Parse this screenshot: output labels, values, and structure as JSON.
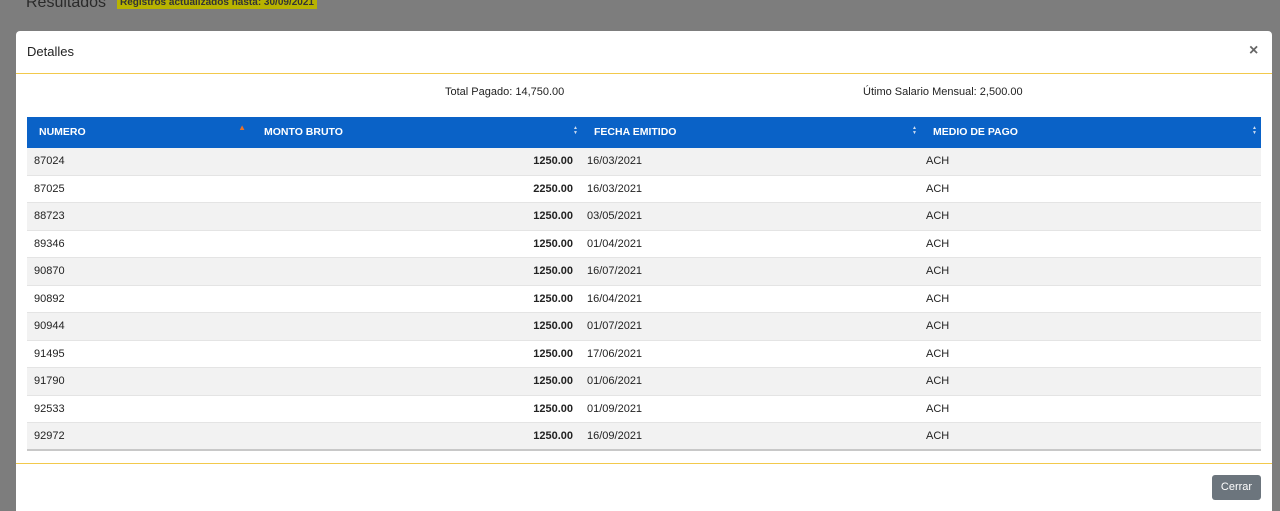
{
  "background": {
    "title": "Resultados",
    "badge": "Registros actualizados hasta: 30/09/2021"
  },
  "modal": {
    "title": "Detalles",
    "close": "×",
    "summary": [
      {
        "label": "Total Pagado:",
        "value": "14,750.00"
      },
      {
        "label": "Útimo Salario Mensual:",
        "value": "2,500.00"
      }
    ],
    "table": {
      "headers": [
        "NUMERO",
        "MONTO BRUTO",
        "FECHA EMITIDO",
        "MEDIO DE PAGO"
      ],
      "rows": [
        [
          "87024",
          "1250.00",
          "16/03/2021",
          "ACH"
        ],
        [
          "87025",
          "2250.00",
          "16/03/2021",
          "ACH"
        ],
        [
          "88723",
          "1250.00",
          "03/05/2021",
          "ACH"
        ],
        [
          "89346",
          "1250.00",
          "01/04/2021",
          "ACH"
        ],
        [
          "90870",
          "1250.00",
          "16/07/2021",
          "ACH"
        ],
        [
          "90892",
          "1250.00",
          "16/04/2021",
          "ACH"
        ],
        [
          "90944",
          "1250.00",
          "01/07/2021",
          "ACH"
        ],
        [
          "91495",
          "1250.00",
          "17/06/2021",
          "ACH"
        ],
        [
          "91790",
          "1250.00",
          "01/06/2021",
          "ACH"
        ],
        [
          "92533",
          "1250.00",
          "01/09/2021",
          "ACH"
        ],
        [
          "92972",
          "1250.00",
          "16/09/2021",
          "ACH"
        ]
      ]
    },
    "button": "Cerrar"
  }
}
